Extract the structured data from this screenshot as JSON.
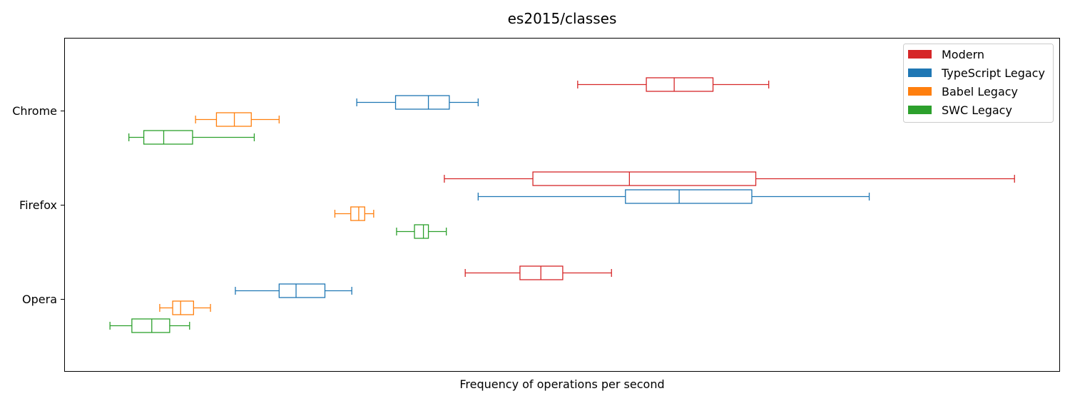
{
  "chart_data": {
    "type": "boxplot",
    "orientation": "horizontal",
    "title": "es2015/classes",
    "xlabel": "Frequency of operations per second",
    "ylabel": "",
    "x_ticks_shown": false,
    "xlim": [
      0,
      100
    ],
    "categories": [
      "Chrome",
      "Firefox",
      "Opera"
    ],
    "legend_position": "top-right",
    "series": [
      {
        "name": "Modern",
        "color": "#d62728",
        "boxes": [
          {
            "min": 51.6,
            "q1": 58.5,
            "median": 61.3,
            "q3": 65.2,
            "max": 70.8
          },
          {
            "min": 38.2,
            "q1": 47.1,
            "median": 56.8,
            "q3": 69.5,
            "max": 95.5
          },
          {
            "min": 40.3,
            "q1": 45.8,
            "median": 47.9,
            "q3": 50.1,
            "max": 55.0
          }
        ]
      },
      {
        "name": "TypeScript Legacy",
        "color": "#1f77b4",
        "boxes": [
          {
            "min": 29.4,
            "q1": 33.3,
            "median": 36.6,
            "q3": 38.7,
            "max": 41.6
          },
          {
            "min": 41.6,
            "q1": 56.4,
            "median": 61.8,
            "q3": 69.1,
            "max": 80.9
          },
          {
            "min": 17.2,
            "q1": 21.6,
            "median": 23.3,
            "q3": 26.2,
            "max": 28.9
          }
        ]
      },
      {
        "name": "Babel Legacy",
        "color": "#ff7f0e",
        "boxes": [
          {
            "min": 13.2,
            "q1": 15.3,
            "median": 17.1,
            "q3": 18.8,
            "max": 21.6
          },
          {
            "min": 27.2,
            "q1": 28.8,
            "median": 29.6,
            "q3": 30.2,
            "max": 31.1
          },
          {
            "min": 9.6,
            "q1": 10.9,
            "median": 11.7,
            "q3": 13.0,
            "max": 14.7
          }
        ]
      },
      {
        "name": "SWC Legacy",
        "color": "#2ca02c",
        "boxes": [
          {
            "min": 6.5,
            "q1": 8.0,
            "median": 10.0,
            "q3": 12.9,
            "max": 19.1
          },
          {
            "min": 33.4,
            "q1": 35.2,
            "median": 36.1,
            "q3": 36.6,
            "max": 38.4
          },
          {
            "min": 4.6,
            "q1": 6.8,
            "median": 8.8,
            "q3": 10.6,
            "max": 12.6
          }
        ]
      }
    ]
  }
}
